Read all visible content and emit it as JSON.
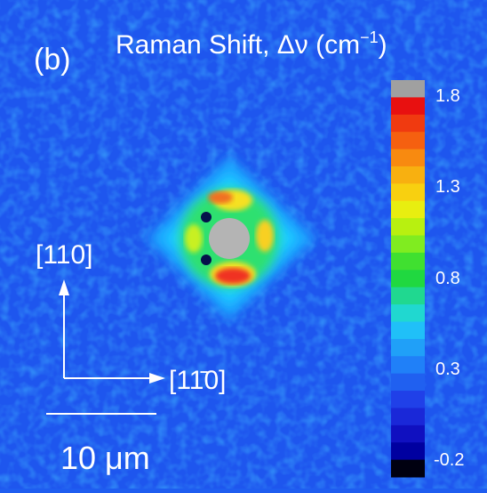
{
  "figure": {
    "panel_label": "(b)",
    "title": {
      "text": "Raman Shift, Δν (cm",
      "superscript": "−1",
      "closing": ")"
    },
    "colorbar": {
      "ticks": [
        "1.8",
        "1.3",
        "0.8",
        "0.3",
        "-0.2"
      ]
    },
    "directions": {
      "vertical": "[110]",
      "horizontal": "[11̄0]"
    },
    "scale_bar": "10 μm"
  }
}
